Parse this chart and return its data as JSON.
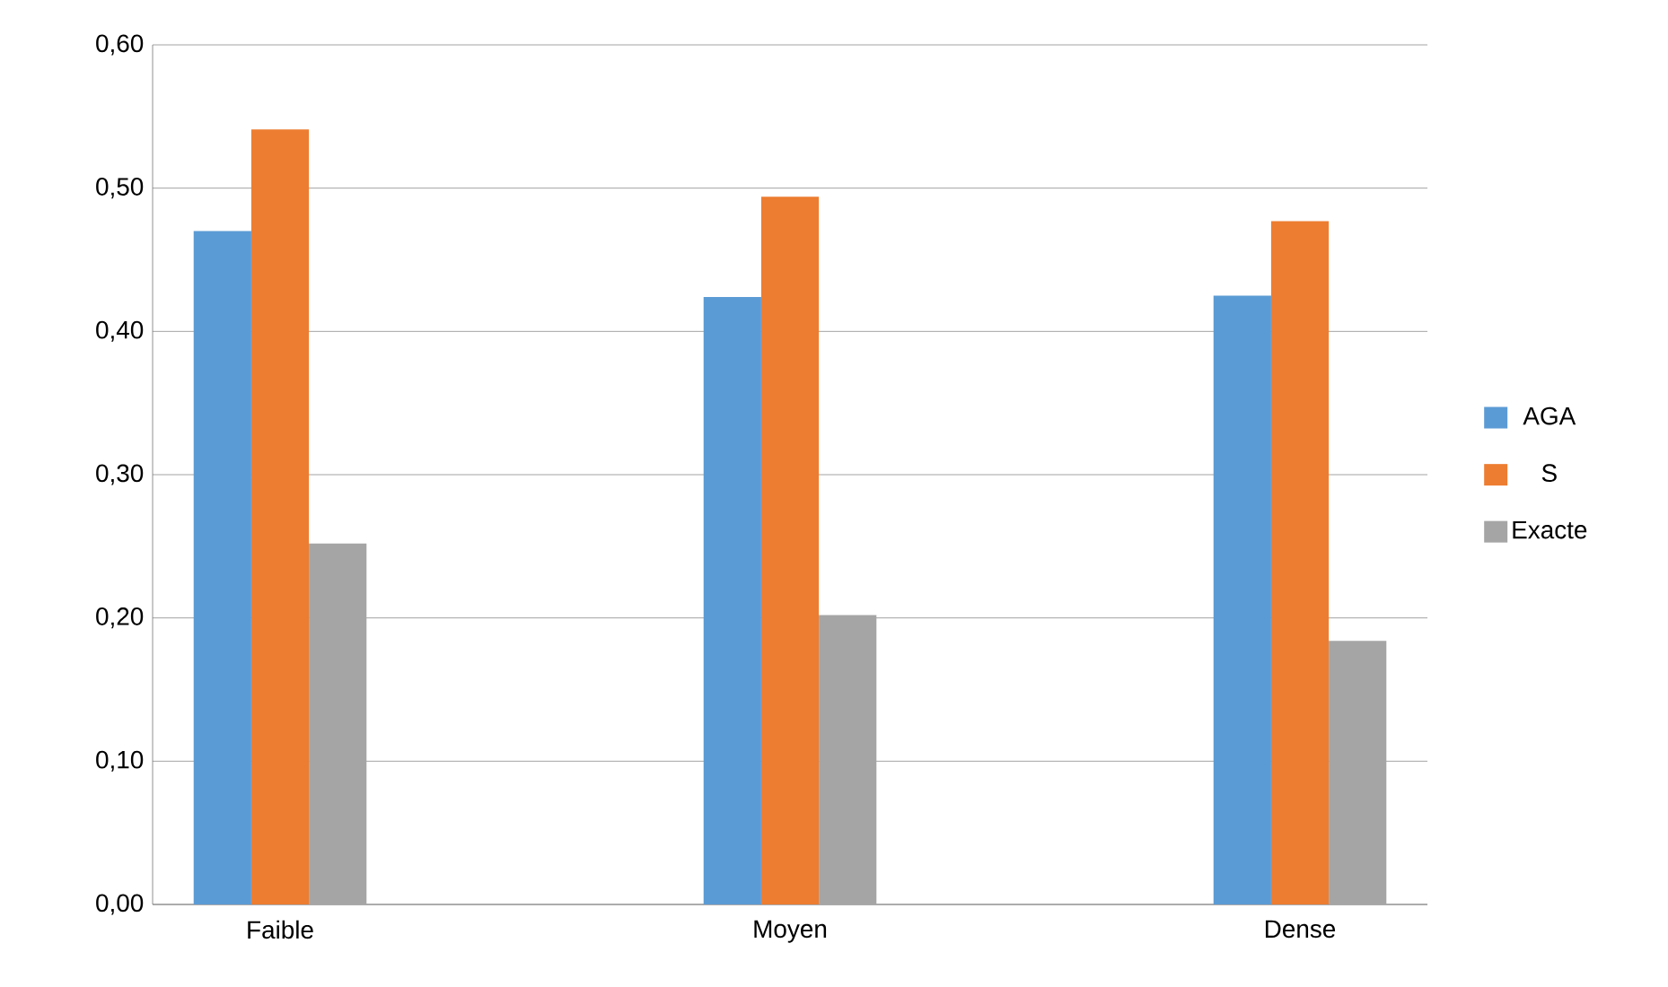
{
  "chart_data": {
    "type": "bar",
    "categories": [
      "Faible",
      "Moyen",
      "Dense"
    ],
    "series": [
      {
        "name": "AGA",
        "color": "#5b9bd5",
        "values": [
          0.47,
          0.424,
          0.425
        ]
      },
      {
        "name": "S",
        "color": "#ed7d31",
        "values": [
          0.541,
          0.494,
          0.477
        ]
      },
      {
        "name": "Exacte",
        "color": "#a5a5a5",
        "values": [
          0.252,
          0.202,
          0.184
        ]
      }
    ],
    "ylim": [
      0,
      0.6
    ],
    "yticks": [
      {
        "value": 0,
        "label": "0,00"
      },
      {
        "value": 0.1,
        "label": "0,10"
      },
      {
        "value": 0.2,
        "label": "0,20"
      },
      {
        "value": 0.3,
        "label": "0,30"
      },
      {
        "value": 0.4,
        "label": "0,40"
      },
      {
        "value": 0.5,
        "label": "0,50"
      },
      {
        "value": 0.6,
        "label": "0,60"
      }
    ],
    "grid": "y",
    "legend": "right"
  }
}
